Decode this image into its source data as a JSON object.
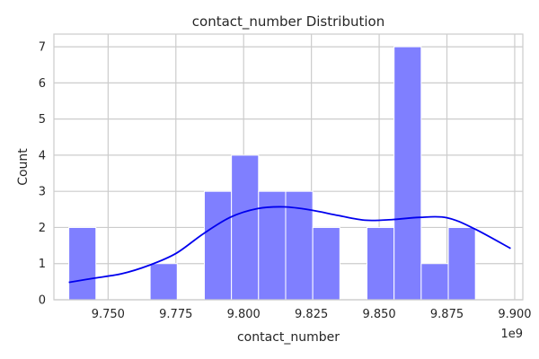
{
  "chart_data": {
    "type": "histogram",
    "title": "contact_number Distribution",
    "xlabel": "contact_number",
    "ylabel": "Count",
    "x_offset_label": "1e9",
    "x_axis_multiplier": 1000000000,
    "xlim": [
      9.73,
      9.903
    ],
    "ylim": [
      0,
      7.35
    ],
    "x_ticks": [
      {
        "value": 9.75,
        "label": "9.750"
      },
      {
        "value": 9.775,
        "label": "9.775"
      },
      {
        "value": 9.8,
        "label": "9.800"
      },
      {
        "value": 9.825,
        "label": "9.825"
      },
      {
        "value": 9.85,
        "label": "9.850"
      },
      {
        "value": 9.875,
        "label": "9.875"
      },
      {
        "value": 9.9,
        "label": "9.900"
      }
    ],
    "y_ticks": [
      {
        "value": 0,
        "label": "0"
      },
      {
        "value": 1,
        "label": "1"
      },
      {
        "value": 2,
        "label": "2"
      },
      {
        "value": 3,
        "label": "3"
      },
      {
        "value": 4,
        "label": "4"
      },
      {
        "value": 5,
        "label": "5"
      },
      {
        "value": 6,
        "label": "6"
      },
      {
        "value": 7,
        "label": "7"
      }
    ],
    "bins": [
      {
        "x0": 9.7355,
        "x1": 9.7455,
        "count": 2
      },
      {
        "x0": 9.7455,
        "x1": 9.7555,
        "count": 0
      },
      {
        "x0": 9.7555,
        "x1": 9.7655,
        "count": 0
      },
      {
        "x0": 9.7655,
        "x1": 9.7755,
        "count": 1
      },
      {
        "x0": 9.7755,
        "x1": 9.7855,
        "count": 0
      },
      {
        "x0": 9.7855,
        "x1": 9.7955,
        "count": 3
      },
      {
        "x0": 9.7955,
        "x1": 9.8055,
        "count": 4
      },
      {
        "x0": 9.8055,
        "x1": 9.8155,
        "count": 3
      },
      {
        "x0": 9.8155,
        "x1": 9.8255,
        "count": 3
      },
      {
        "x0": 9.8255,
        "x1": 9.8355,
        "count": 2
      },
      {
        "x0": 9.8355,
        "x1": 9.8455,
        "count": 0
      },
      {
        "x0": 9.8455,
        "x1": 9.8555,
        "count": 2
      },
      {
        "x0": 9.8555,
        "x1": 9.8655,
        "count": 7
      },
      {
        "x0": 9.8655,
        "x1": 9.8755,
        "count": 1
      },
      {
        "x0": 9.8755,
        "x1": 9.8855,
        "count": 2
      }
    ],
    "kde": {
      "x": [
        9.7355,
        9.745,
        9.755,
        9.765,
        9.775,
        9.785,
        9.795,
        9.805,
        9.815,
        9.825,
        9.835,
        9.845,
        9.855,
        9.865,
        9.875,
        9.885,
        9.8985
      ],
      "y": [
        0.48,
        0.6,
        0.72,
        0.95,
        1.28,
        1.82,
        2.28,
        2.52,
        2.57,
        2.48,
        2.33,
        2.2,
        2.22,
        2.28,
        2.27,
        1.97,
        1.42
      ]
    },
    "grid": true,
    "colors": {
      "bar_fill": "#7f7fff",
      "bar_edge": "#ffffff",
      "kde_line": "#0000ee",
      "grid": "#cccccc",
      "axes_edge": "#cccccc",
      "text": "#262626"
    }
  }
}
